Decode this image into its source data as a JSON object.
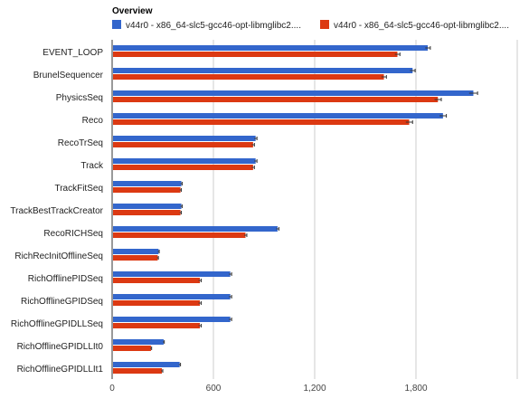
{
  "chart_data": {
    "type": "bar",
    "orientation": "horizontal",
    "title": "Overview",
    "categories": [
      "EVENT_LOOP",
      "BrunelSequencer",
      "PhysicsSeq",
      "Reco",
      "RecoTrSeq",
      "Track",
      "TrackFitSeq",
      "TrackBestTrackCreator",
      "RecoRICHSeq",
      "RichRecInitOfflineSeq",
      "RichOfflinePIDSeq",
      "RichOfflineGPIDSeq",
      "RichOfflineGPIDLLSeq",
      "RichOfflineGPIDLLIt0",
      "RichOfflineGPIDLLIt1"
    ],
    "series": [
      {
        "name": "v44r0 - x86_64-slc5-gcc46-opt-libmglibc2....",
        "color": "#3366cc",
        "values": [
          1870,
          1780,
          2140,
          1960,
          850,
          850,
          410,
          410,
          980,
          275,
          700,
          700,
          700,
          305,
          400
        ],
        "errors": [
          15,
          15,
          25,
          20,
          8,
          8,
          5,
          5,
          8,
          4,
          8,
          8,
          8,
          4,
          5
        ]
      },
      {
        "name": "v44r0 - x86_64-slc5-gcc46-opt-libmglibc2....",
        "color": "#dc3912",
        "values": [
          1690,
          1610,
          1930,
          1760,
          835,
          835,
          405,
          405,
          790,
          270,
          520,
          520,
          520,
          230,
          295
        ],
        "errors": [
          15,
          15,
          20,
          20,
          8,
          8,
          5,
          5,
          8,
          4,
          8,
          8,
          8,
          4,
          5
        ]
      }
    ],
    "xticks": [
      0,
      600,
      1200,
      1800
    ],
    "xtick_labels": [
      "0",
      "600",
      "1,200",
      "1,800"
    ],
    "xlim": [
      0,
      2400
    ],
    "grid": true,
    "legend_position": "top"
  }
}
